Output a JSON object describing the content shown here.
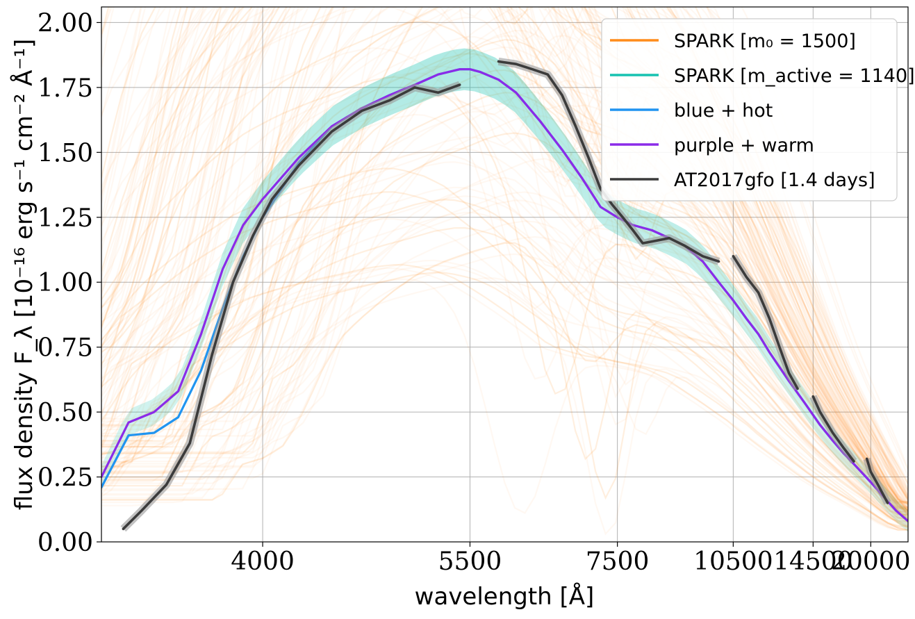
{
  "chart_data": {
    "type": "line",
    "xlabel": "wavelength [Å]",
    "ylabel": "flux density F_λ [10⁻¹⁶ erg s⁻¹ cm⁻² Å⁻¹]",
    "x_scale": "reciprocal",
    "xlim": [
      3300,
      26500
    ],
    "ylim": [
      0,
      2.06
    ],
    "x_ticks": [
      4000,
      5500,
      7500,
      10500,
      14500,
      20000
    ],
    "x_tick_labels": [
      "4000",
      "5500",
      "7500",
      "10500",
      "14500",
      "20000"
    ],
    "y_ticks": [
      0,
      0.25,
      0.5,
      0.75,
      1.0,
      1.25,
      1.5,
      1.75,
      2.0
    ],
    "y_tick_labels": [
      "0.00",
      "0.25",
      "0.50",
      "0.75",
      "1.00",
      "1.25",
      "1.50",
      "1.75",
      "2.00"
    ],
    "grid": true,
    "legend_position": "top-right",
    "colors": {
      "spark_m0": "#ff8c1a",
      "spark_active": "#16c2b0",
      "blue_hot": "#2094f0",
      "purple_warm": "#8b2be8",
      "at2017gfo": "#3b3b3b"
    },
    "legend": [
      {
        "label": "SPARK [m₀ = 1500]",
        "color": "#ff8c1a"
      },
      {
        "label": "SPARK [m_active = 1140]",
        "color": "#16c2b0"
      },
      {
        "label": "blue + hot",
        "color": "#2094f0"
      },
      {
        "label": "purple + warm",
        "color": "#8b2be8"
      },
      {
        "label": "AT2017gfo [1.4 days]",
        "color": "#3b3b3b"
      }
    ],
    "series": [
      {
        "name": "purple + warm",
        "color": "#8b2be8",
        "x": [
          3300,
          3400,
          3500,
          3600,
          3700,
          3800,
          3900,
          4000,
          4200,
          4400,
          4600,
          4800,
          5000,
          5200,
          5400,
          5500,
          5600,
          5800,
          6000,
          6300,
          6600,
          6900,
          7200,
          7500,
          7800,
          8200,
          8600,
          9000,
          9500,
          10000,
          10500,
          11000,
          11500,
          12000,
          13000,
          14000,
          15000,
          16000,
          17000,
          18000,
          20000,
          22000,
          24000,
          26500
        ],
        "y": [
          0.25,
          0.46,
          0.5,
          0.58,
          0.8,
          1.05,
          1.22,
          1.32,
          1.48,
          1.6,
          1.67,
          1.72,
          1.76,
          1.8,
          1.82,
          1.82,
          1.81,
          1.78,
          1.73,
          1.62,
          1.51,
          1.4,
          1.29,
          1.25,
          1.22,
          1.2,
          1.17,
          1.14,
          1.08,
          1.0,
          0.93,
          0.86,
          0.8,
          0.73,
          0.62,
          0.53,
          0.45,
          0.39,
          0.34,
          0.3,
          0.23,
          0.17,
          0.12,
          0.08
        ]
      },
      {
        "name": "blue + hot",
        "color": "#2094f0",
        "x": [
          3300,
          3400,
          3500,
          3600,
          3700,
          3800,
          3900,
          4000,
          4200,
          4400,
          4600,
          4800,
          5000,
          5200,
          5400,
          5500,
          5600,
          5800,
          6000,
          6300,
          6600,
          6900,
          7200,
          7500,
          7800,
          8200,
          8600,
          9000,
          9500,
          10000,
          10500,
          11000,
          11500,
          12000,
          13000,
          14000,
          15000,
          16000,
          17000,
          18000,
          20000,
          22000,
          24000,
          26500
        ],
        "y": [
          0.21,
          0.41,
          0.42,
          0.48,
          0.66,
          0.9,
          1.1,
          1.25,
          1.46,
          1.6,
          1.67,
          1.72,
          1.76,
          1.8,
          1.82,
          1.82,
          1.81,
          1.78,
          1.73,
          1.62,
          1.51,
          1.4,
          1.29,
          1.25,
          1.22,
          1.2,
          1.17,
          1.14,
          1.08,
          1.0,
          0.93,
          0.86,
          0.8,
          0.73,
          0.62,
          0.53,
          0.45,
          0.39,
          0.34,
          0.3,
          0.23,
          0.17,
          0.12,
          0.08
        ]
      },
      {
        "name": "AT2017gfo [1.4 days]",
        "color": "#3b3b3b",
        "x": [
          3380,
          3450,
          3550,
          3650,
          3750,
          3850,
          3950,
          4050,
          4200,
          4400,
          4600,
          4800,
          5000,
          5200,
          5400
        ],
        "y": [
          0.05,
          0.12,
          0.22,
          0.38,
          0.72,
          1.0,
          1.18,
          1.32,
          1.45,
          1.58,
          1.66,
          1.7,
          1.75,
          1.73,
          1.76
        ]
      },
      {
        "name": "AT2017gfo [1.4 days]",
        "color": "#3b3b3b",
        "x": [
          5800,
          6000,
          6200,
          6400,
          6600,
          6800,
          7000,
          7200,
          7400,
          7600,
          7800,
          8000,
          8300,
          8600,
          9000,
          9500,
          10000
        ],
        "y": [
          1.85,
          1.84,
          1.82,
          1.8,
          1.72,
          1.6,
          1.48,
          1.36,
          1.3,
          1.25,
          1.2,
          1.15,
          1.16,
          1.17,
          1.14,
          1.1,
          1.08
        ]
      },
      {
        "name": "AT2017gfo [1.4 days]",
        "color": "#3b3b3b",
        "x": [
          10500,
          11000,
          11500,
          12000,
          12500,
          13000,
          13500
        ],
        "y": [
          1.1,
          1.02,
          0.96,
          0.86,
          0.75,
          0.65,
          0.59
        ]
      },
      {
        "name": "AT2017gfo [1.4 days]",
        "color": "#3b3b3b",
        "x": [
          14500,
          15000,
          16000,
          17000,
          18000
        ],
        "y": [
          0.56,
          0.5,
          0.42,
          0.36,
          0.31
        ]
      },
      {
        "name": "AT2017gfo [1.4 days]",
        "color": "#3b3b3b",
        "x": [
          19500,
          20000,
          21000,
          22500
        ],
        "y": [
          0.32,
          0.27,
          0.22,
          0.15
        ]
      }
    ]
  }
}
